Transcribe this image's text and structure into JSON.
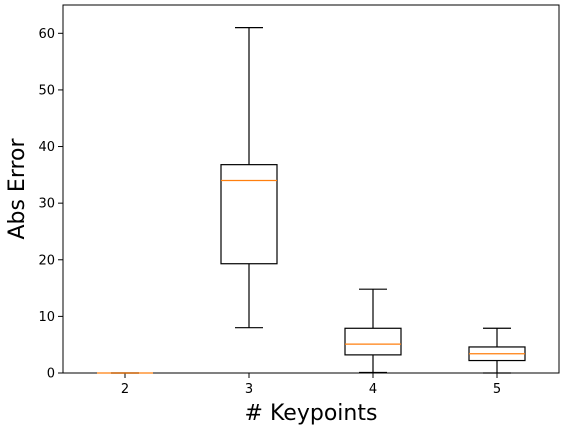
{
  "chart_data": {
    "type": "box",
    "xlabel": "# Keypoints",
    "ylabel": "Abs Error",
    "ylim": [
      0,
      65
    ],
    "yticks": [
      0,
      10,
      20,
      30,
      40,
      50,
      60
    ],
    "categories": [
      "2",
      "3",
      "4",
      "5"
    ],
    "boxes": [
      {
        "category": "2",
        "whisker_low": 0,
        "q1": 0,
        "median": 0,
        "q3": 0,
        "whisker_high": 0
      },
      {
        "category": "3",
        "whisker_low": 8,
        "q1": 19.3,
        "median": 34,
        "q3": 36.8,
        "whisker_high": 61
      },
      {
        "category": "4",
        "whisker_low": 0.1,
        "q1": 3.2,
        "median": 5.1,
        "q3": 7.9,
        "whisker_high": 14.8
      },
      {
        "category": "5",
        "whisker_low": 0,
        "q1": 2.2,
        "median": 3.4,
        "q3": 4.6,
        "whisker_high": 7.9
      }
    ],
    "colors": {
      "box": "#000000",
      "median": "#ff7f0e"
    }
  }
}
